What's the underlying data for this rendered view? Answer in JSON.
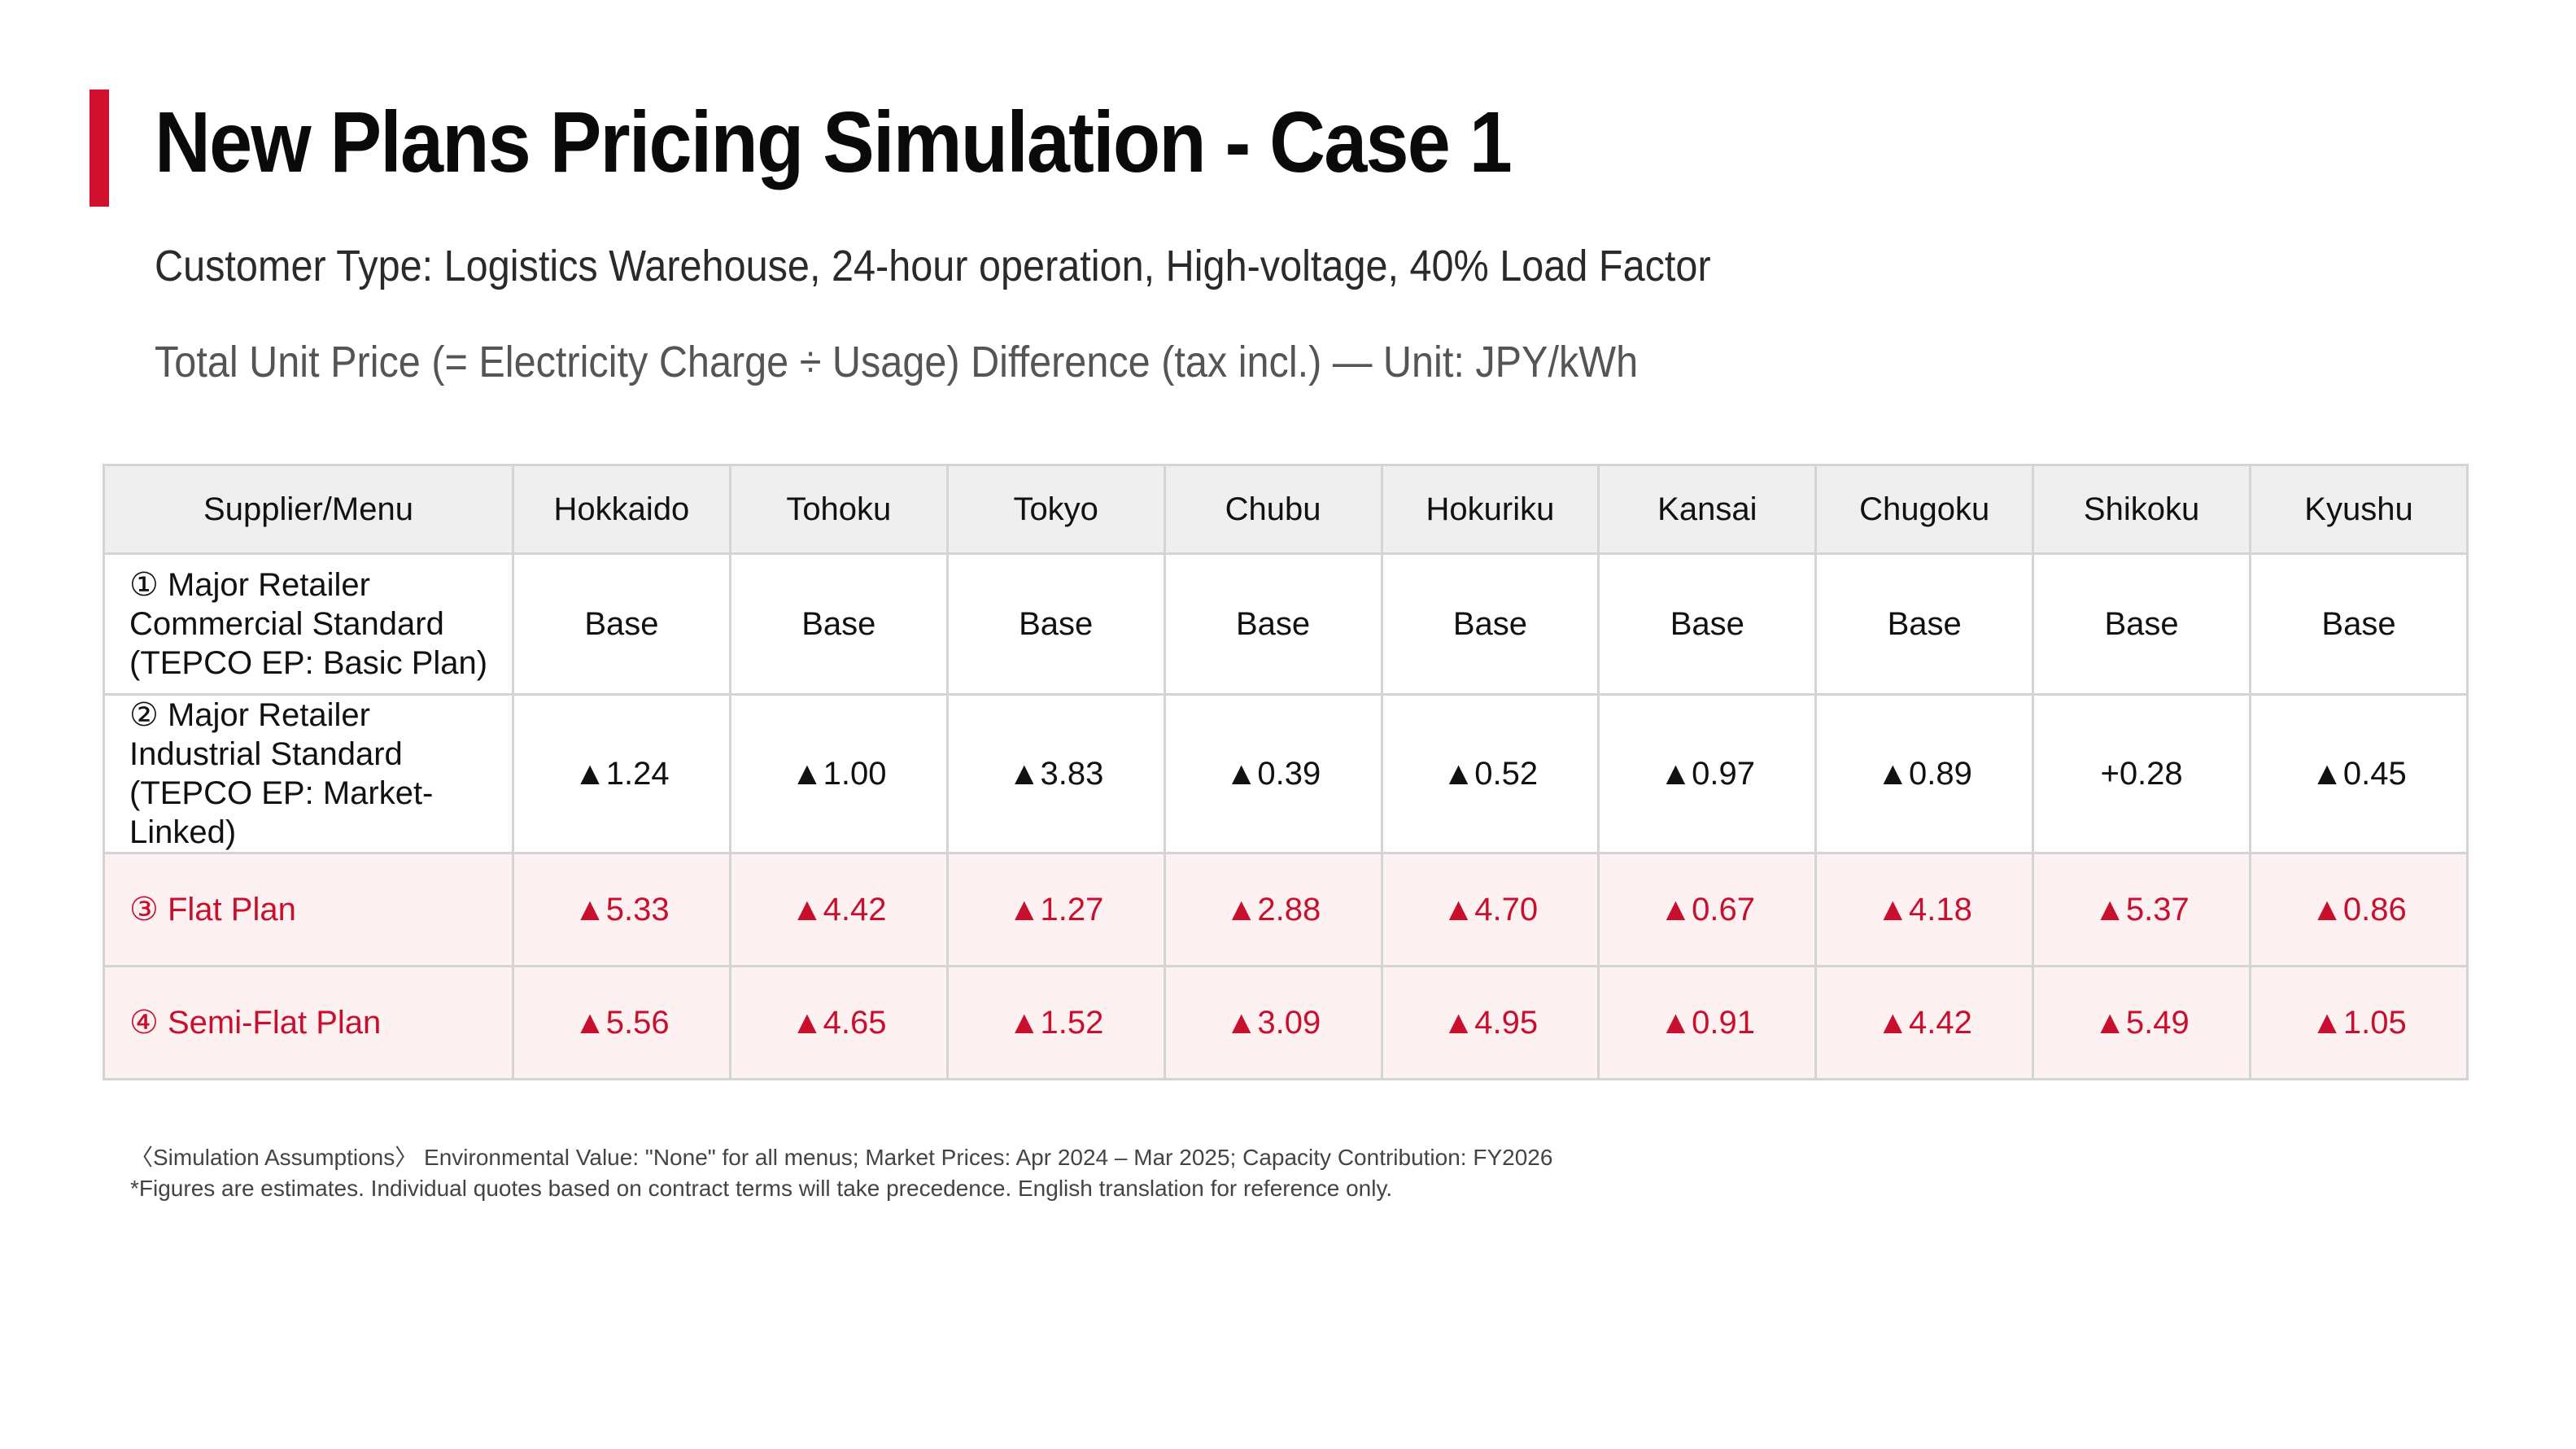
{
  "header": {
    "title": "New Plans Pricing Simulation - Case 1",
    "subtitle": "Customer Type: Logistics Warehouse, 24-hour operation, High-voltage, 40% Load Factor",
    "unit_line": "Total Unit Price (= Electricity Charge ÷ Usage) Difference (tax incl.) — Unit: JPY/kWh"
  },
  "colors": {
    "accent": "#d0102c",
    "plan_text": "#c8102e",
    "plan_bg": "#fdf1f2",
    "header_bg": "#efefef"
  },
  "table": {
    "columns": [
      "Supplier/Menu",
      "Hokkaido",
      "Tohoku",
      "Tokyo",
      "Chubu",
      "Hokuriku",
      "Kansai",
      "Chugoku",
      "Shikoku",
      "Kyushu"
    ],
    "rows": [
      {
        "label_lines": [
          "① Major Retailer",
          "Commercial Standard",
          "(TEPCO EP: Basic Plan)"
        ],
        "values": [
          "Base",
          "Base",
          "Base",
          "Base",
          "Base",
          "Base",
          "Base",
          "Base",
          "Base"
        ]
      },
      {
        "label_lines": [
          "② Major Retailer",
          "Industrial Standard",
          "(TEPCO EP: Market-Linked)"
        ],
        "values": [
          "▲1.24",
          "▲1.00",
          "▲3.83",
          "▲0.39",
          "▲0.52",
          "▲0.97",
          "▲0.89",
          "+0.28",
          "▲0.45"
        ]
      },
      {
        "label": "③ Flat Plan",
        "values": [
          "▲5.33",
          "▲4.42",
          "▲1.27",
          "▲2.88",
          "▲4.70",
          "▲0.67",
          "▲4.18",
          "▲5.37",
          "▲0.86"
        ]
      },
      {
        "label": "④ Semi-Flat Plan",
        "values": [
          "▲5.56",
          "▲4.65",
          "▲1.52",
          "▲3.09",
          "▲4.95",
          "▲0.91",
          "▲4.42",
          "▲5.49",
          "▲1.05"
        ]
      }
    ]
  },
  "footer": {
    "assumptions": "〈Simulation Assumptions〉 Environmental Value: \"None\" for all menus; Market Prices: Apr 2024 – Mar 2025; Capacity Contribution: FY2026",
    "disclaimer": "*Figures are estimates. Individual quotes based on contract terms will take precedence. English translation for reference only."
  }
}
